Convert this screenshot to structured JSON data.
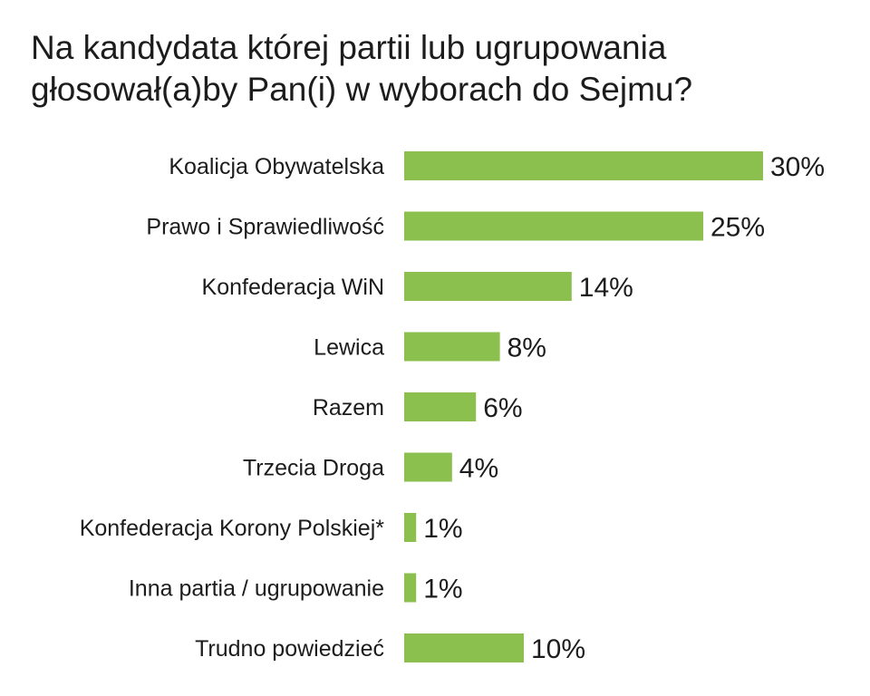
{
  "chart_data": {
    "type": "bar",
    "orientation": "horizontal",
    "title_lines": [
      "Na kandydata której partii lub ugrupowania",
      "głosował(a)by Pan(i) w wyborach do Sejmu?"
    ],
    "categories": [
      "Koalicja Obywatelska",
      "Prawo i Sprawiedliwość",
      "Konfederacja WiN",
      "Lewica",
      "Razem",
      "Trzecia Droga",
      "Konfederacja Korony Polskiej*",
      "Inna partia / ugrupowanie",
      "Trudno powiedzieć"
    ],
    "values": [
      30,
      25,
      14,
      8,
      6,
      4,
      1,
      1,
      10
    ],
    "value_labels": [
      "30%",
      "25%",
      "14%",
      "8%",
      "6%",
      "4%",
      "1%",
      "1%",
      "10%"
    ],
    "unit": "%",
    "xlim": [
      0,
      30
    ],
    "grid": false,
    "legend": "none",
    "bar_color": "#8bc04f"
  }
}
